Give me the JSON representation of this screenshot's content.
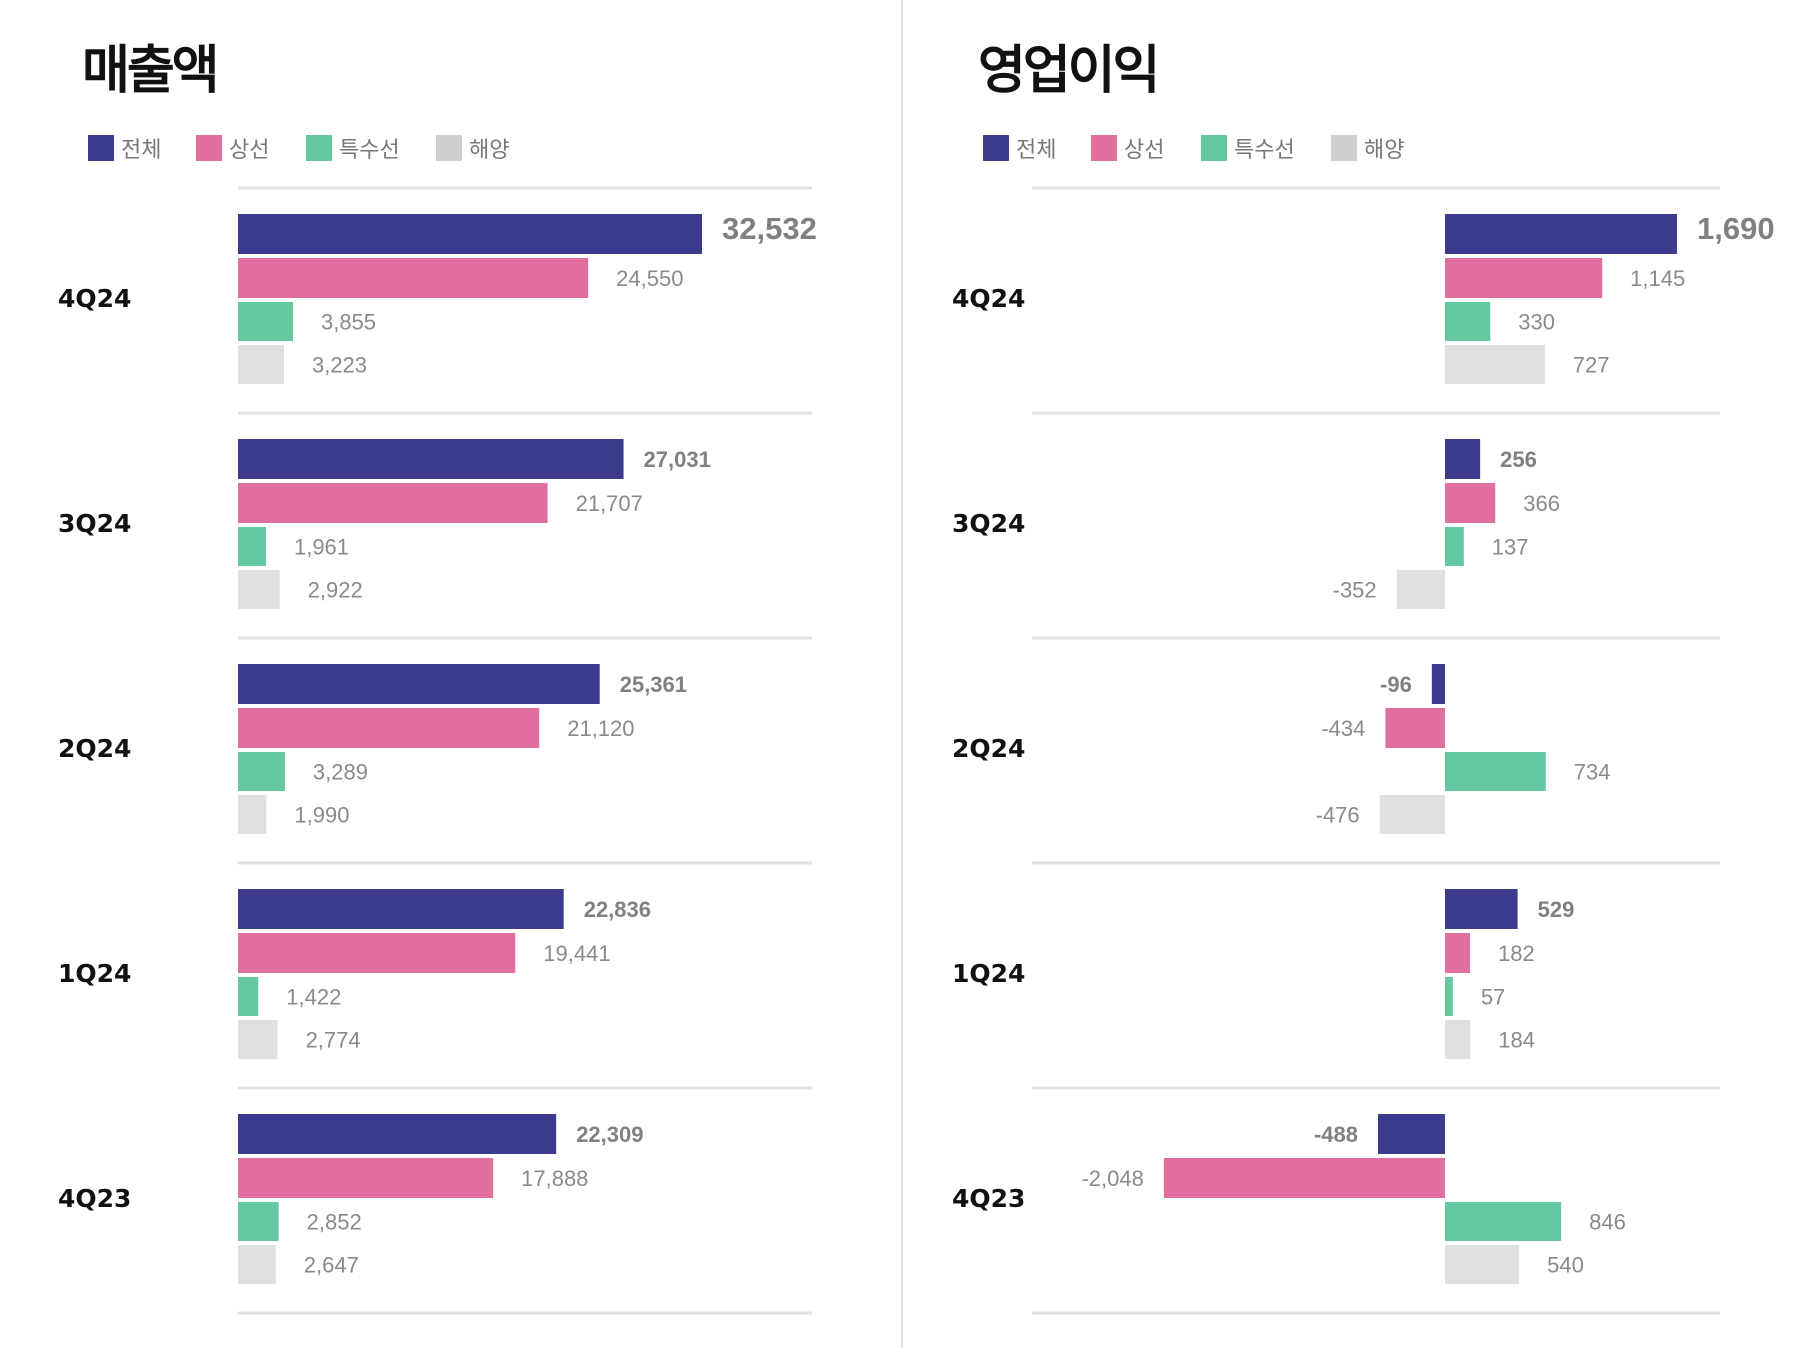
{
  "colors": {
    "total": "#3c3a8d",
    "merchant": "#e06fa0",
    "special": "#64c8a0",
    "offshore": "#e0e0e0",
    "legend_offshore": "#cfcfcf",
    "divider": "#e2e2e2",
    "label": "#8a8a8a"
  },
  "legend": [
    "전체",
    "상선",
    "특수선",
    "해양"
  ],
  "chart_data": [
    {
      "type": "bar",
      "title": "매출액",
      "orientation": "horizontal",
      "categories": [
        "4Q24",
        "3Q24",
        "2Q24",
        "1Q24",
        "4Q23"
      ],
      "series": [
        {
          "name": "전체",
          "values": [
            32532,
            27031,
            25361,
            22836,
            22309
          ]
        },
        {
          "name": "상선",
          "values": [
            24550,
            21707,
            21120,
            19441,
            17888
          ]
        },
        {
          "name": "특수선",
          "values": [
            3855,
            1961,
            3289,
            1422,
            2852
          ]
        },
        {
          "name": "해양",
          "values": [
            3223,
            2922,
            1990,
            2774,
            2647
          ]
        }
      ],
      "value_labels": [
        [
          "32,532",
          "24,550",
          "3,855",
          "3,223"
        ],
        [
          "27,031",
          "21,707",
          "1,961",
          "2,922"
        ],
        [
          "25,361",
          "21,120",
          "3,289",
          "1,990"
        ],
        [
          "22,836",
          "19,441",
          "1,422",
          "2,774"
        ],
        [
          "22,309",
          "17,888",
          "2,852",
          "2,647"
        ]
      ],
      "xlim": [
        0,
        40000
      ]
    },
    {
      "type": "bar",
      "title": "영업이익",
      "orientation": "horizontal",
      "categories": [
        "4Q24",
        "3Q24",
        "2Q24",
        "1Q24",
        "4Q23"
      ],
      "series": [
        {
          "name": "전체",
          "values": [
            1690,
            256,
            -96,
            529,
            -488
          ]
        },
        {
          "name": "상선",
          "values": [
            1145,
            366,
            -434,
            182,
            -2048
          ]
        },
        {
          "name": "특수선",
          "values": [
            330,
            137,
            734,
            57,
            846
          ]
        },
        {
          "name": "해양",
          "values": [
            727,
            -352,
            -476,
            184,
            540
          ]
        }
      ],
      "value_labels": [
        [
          "1,690",
          "1,145",
          "330",
          "727"
        ],
        [
          "256",
          "366",
          "137",
          "-352"
        ],
        [
          "-96",
          "-434",
          "734",
          "-476"
        ],
        [
          "529",
          "182",
          "57",
          "184"
        ],
        [
          "-488",
          "-2,048",
          "846",
          "540"
        ]
      ],
      "xlim": [
        -3000,
        2000
      ]
    }
  ]
}
